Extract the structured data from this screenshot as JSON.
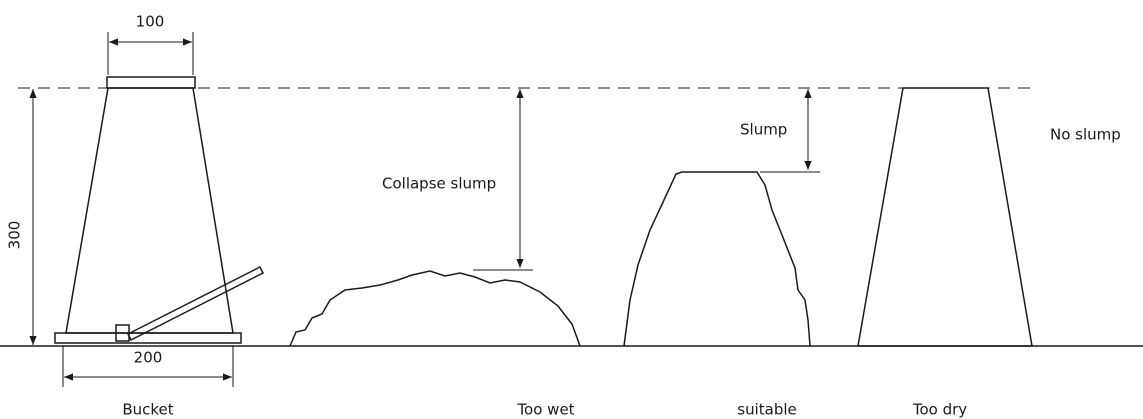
{
  "dimensions": {
    "top_width": "100",
    "height": "300",
    "base_width": "200"
  },
  "annotations": {
    "collapse_slump": "Collapse slump",
    "slump": "Slump",
    "no_slump": "No slump"
  },
  "labels": [
    "Bucket",
    "Too wet",
    "suitable",
    "Too dry"
  ]
}
